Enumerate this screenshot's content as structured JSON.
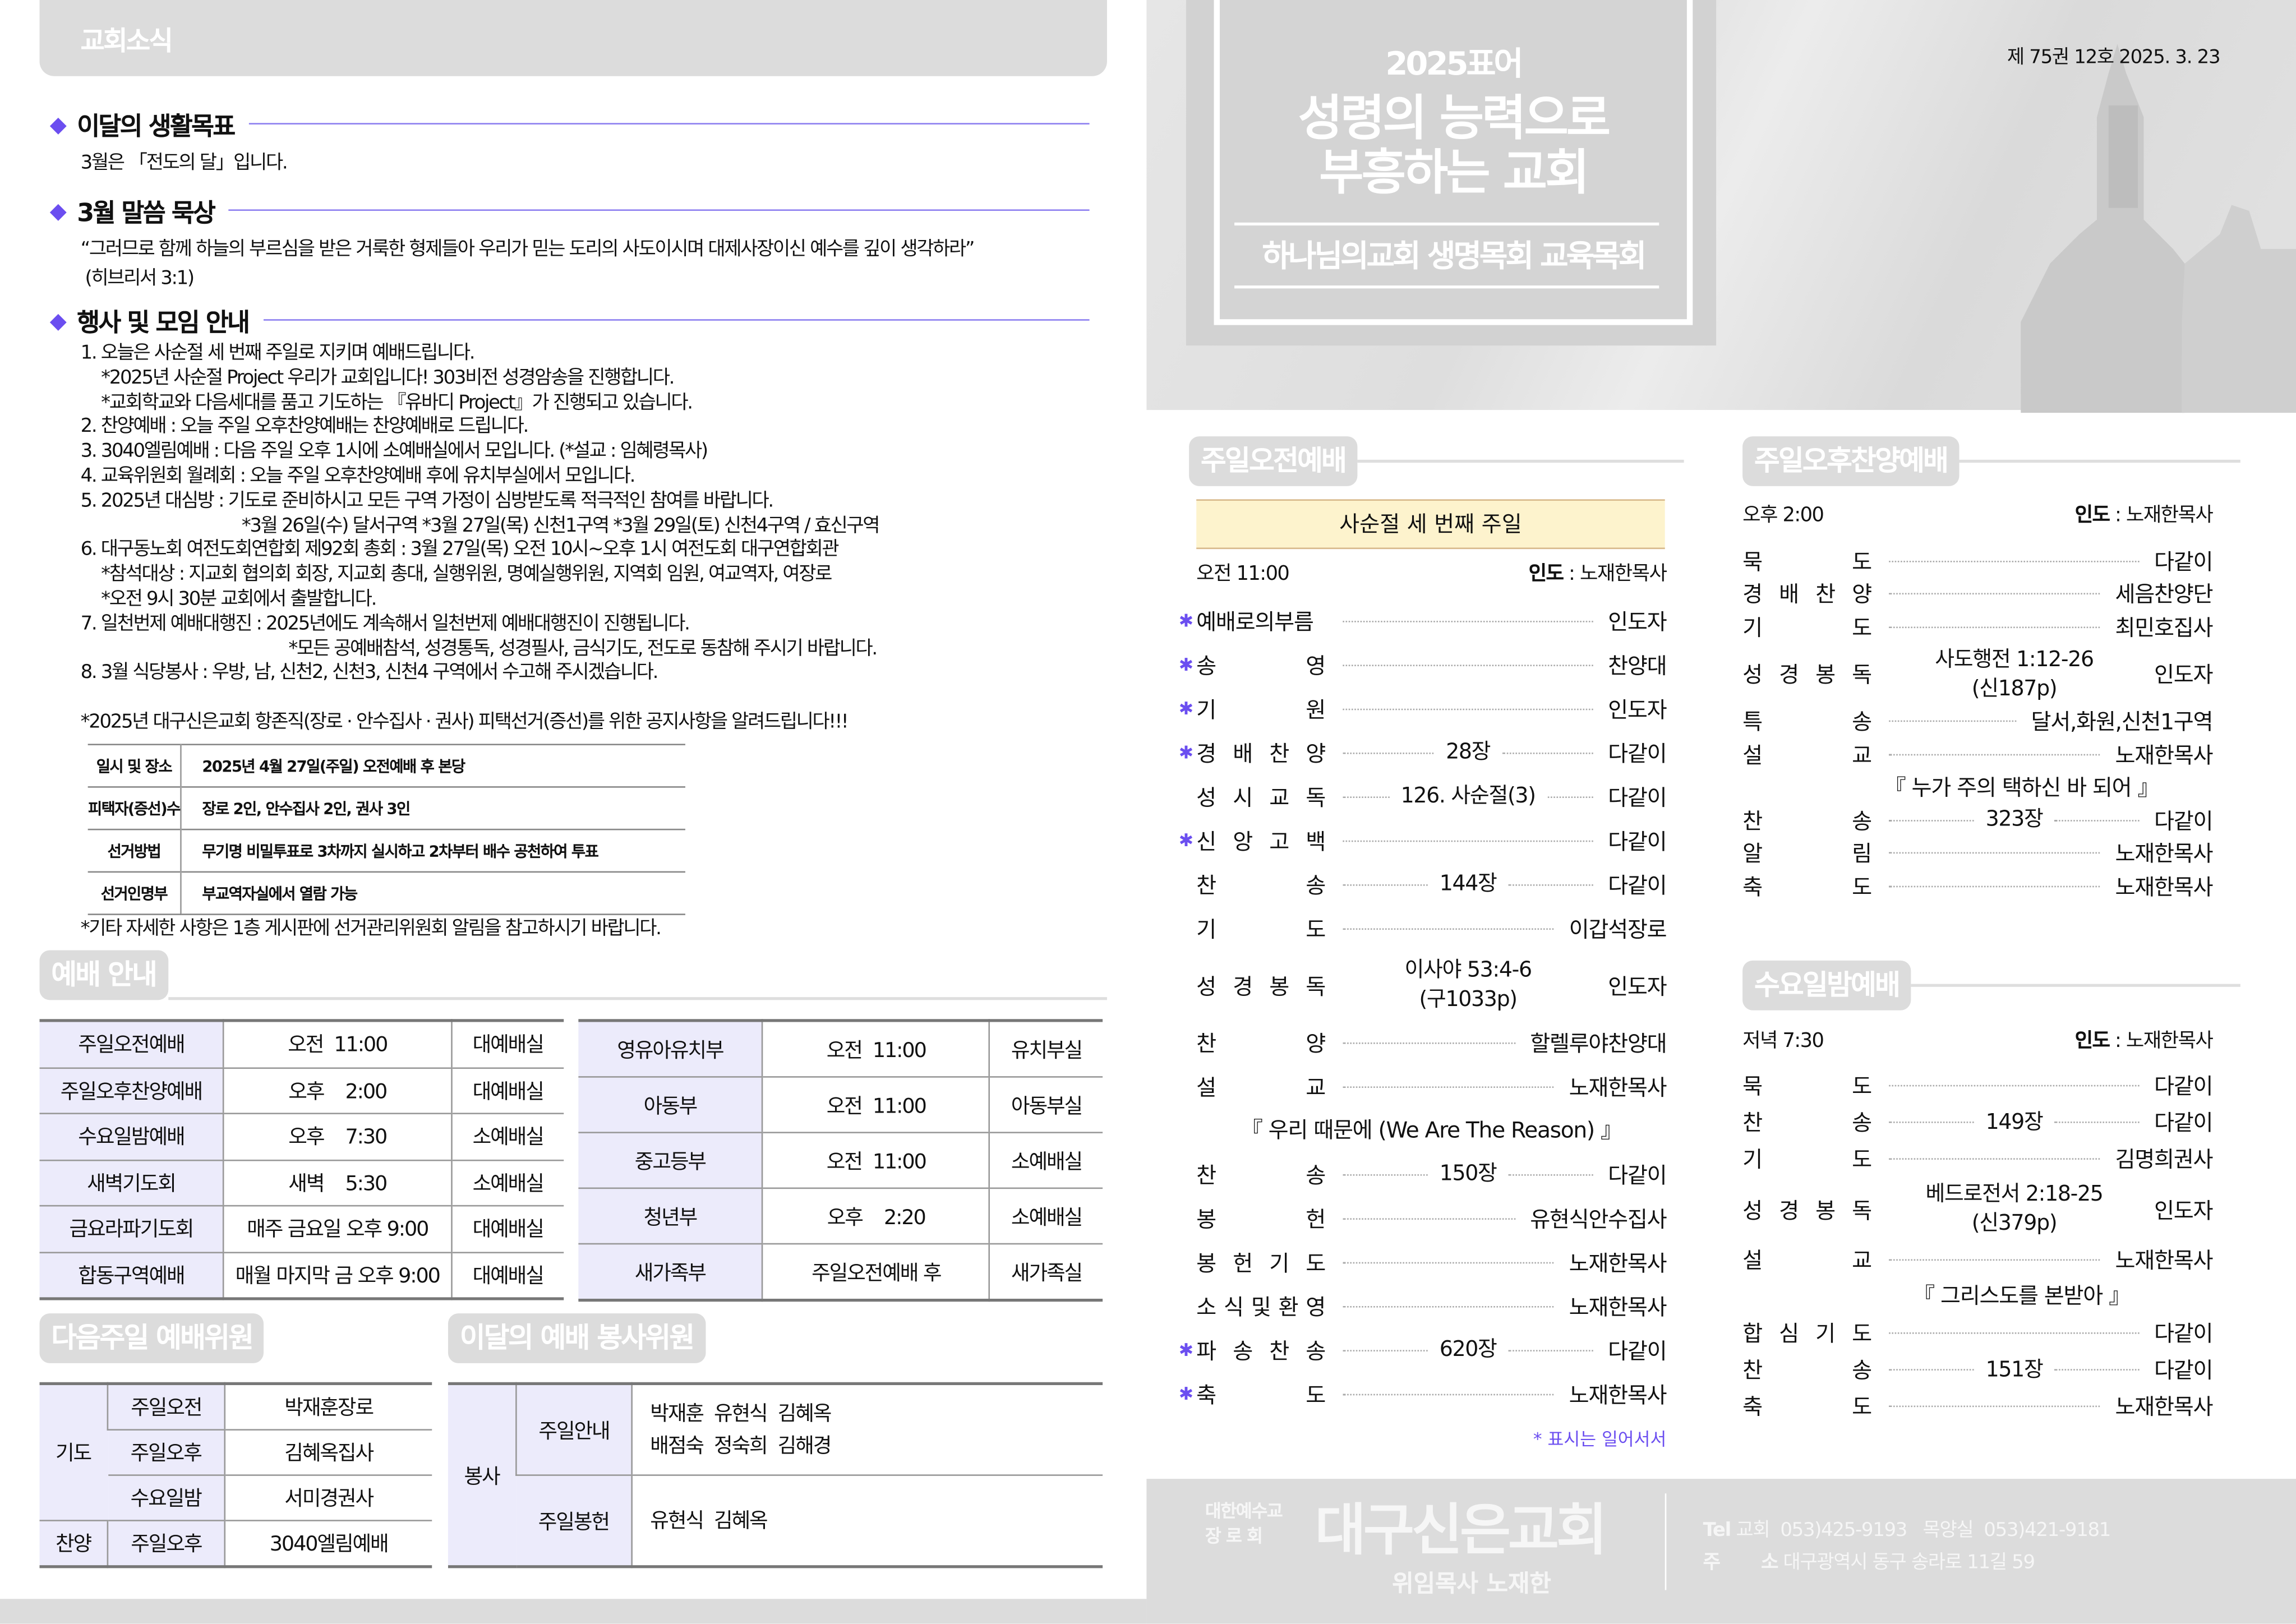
{
  "left": {
    "header": "교회소식",
    "goal": {
      "title": "이달의 생활목표",
      "text": "3월은 「전도의 달」입니다."
    },
    "meditation": {
      "title": "3월 말씀 묵상",
      "verse": "“그러므로 함께 하늘의 부르심을 받은 거룩한 형제들아 우리가 믿는 도리의 사도이시며 대제사장이신 예수를 깊이 생각하라”",
      "ref": "(히브리서 3:1)"
    },
    "events": {
      "title": "행사 및 모임 안내",
      "items": [
        {
          "text": "1. 오늘은 사순절 세 번째 주일로 지키며 예배드립니다.",
          "notes": [
            "*2025년 사순절 Project 우리가 교회입니다!  303비전 성경암송을 진행합니다.",
            "*교회학교와 다음세대를 품고 기도하는 『유바디 Project』가 진행되고 있습니다."
          ]
        },
        {
          "text": "2. 찬양예배 : 오늘 주일 오후찬양예배는 찬양예배로 드립니다.",
          "notes": []
        },
        {
          "text": "3. 3040엘림예배 : 다음 주일 오후 1시에 소예배실에서 모입니다. (*설교 : 임혜령목사)",
          "notes": []
        },
        {
          "text": "4. 교육위원회 월례회 : 오늘 주일 오후찬양예배 후에 유치부실에서 모입니다.",
          "notes": []
        },
        {
          "text": "5. 2025년 대심방 : 기도로 준비하시고 모든 구역 가정이 심방받도록 적극적인 참여를 바랍니다.",
          "notes": [
            "*3월 26일(수) 달서구역   *3월 27일(목) 신천1구역   *3월 29일(토) 신천4구역 / 효신구역"
          ]
        },
        {
          "text": "6. 대구동노회 여전도회연합회 제92회 총회 : 3월 27일(목) 오전 10시~오후 1시 여전도회 대구연합회관",
          "notes": [
            "*참석대상 : 지교회 협의회 회장, 지교회 총대, 실행위원, 명예실행위원, 지역회 임원, 여교역자, 여장로",
            "*오전 9시 30분 교회에서 출발합니다."
          ]
        },
        {
          "text": "7. 일천번제 예배대행진 : 2025년에도 계속해서 일천번제 예배대행진이 진행됩니다.",
          "notes": [
            "*모든 공예배참석, 성경통독, 성경필사, 금식기도, 전도로 동참해 주시기 바랍니다."
          ]
        },
        {
          "text": "8. 3월 식당봉사 : 우방, 남, 신천2, 신천3, 신천4 구역에서 수고해 주시겠습니다.",
          "notes": []
        }
      ]
    },
    "election": {
      "notice": "*2025년 대구신은교회 항존직(장로 · 안수집사 · 권사) 피택선거(증선)를 위한 공지사항을 알려드립니다!!!",
      "rows": [
        [
          "일시 및 장소",
          "2025년 4월 27일(주일) 오전예배 후 본당"
        ],
        [
          "피택자(증선)수",
          "장로 2인, 안수집사 2인, 권사 3인"
        ],
        [
          "선거방법",
          "무기명 비밀투표로 3차까지 실시하고 2차부터 배수 공천하여 투표"
        ],
        [
          "선거인명부",
          "부교역자실에서 열람 가능"
        ]
      ],
      "footnote": "*기타 자세한 사항은 1층 게시판에 선거관리위원회 알림을 참고하시기 바랍니다."
    },
    "worship_guide": {
      "title": "예배 안내",
      "left_rows": [
        [
          "주일오전예배",
          "오전  11:00",
          "대예배실"
        ],
        [
          "주일오후찬양예배",
          "오후    2:00",
          "대예배실"
        ],
        [
          "수요일밤예배",
          "오후    7:30",
          "소예배실"
        ],
        [
          "새벽기도회",
          "새벽    5:30",
          "소예배실"
        ],
        [
          "금요라파기도회",
          "매주 금요일 오후 9:00",
          "대예배실"
        ],
        [
          "합동구역예배",
          "매월 마지막 금 오후 9:00",
          "대예배실"
        ]
      ],
      "right_rows": [
        [
          "영유아유치부",
          "오전  11:00",
          "유치부실"
        ],
        [
          "아동부",
          "오전  11:00",
          "아동부실"
        ],
        [
          "중고등부",
          "오전  11:00",
          "소예배실"
        ],
        [
          "청년부",
          "오후    2:20",
          "소예배실"
        ],
        [
          "새가족부",
          "주일오전예배 후",
          "새가족실"
        ]
      ]
    },
    "next_week": {
      "title": "다음주일 예배위원",
      "prayer_label": "기도",
      "prayer_rows": [
        [
          "주일오전",
          "박재훈장로"
        ],
        [
          "주일오후",
          "김혜옥집사"
        ],
        [
          "수요일밤",
          "서미경권사"
        ]
      ],
      "praise_label": "찬양",
      "praise_row": [
        "주일오후",
        "3040엘림예배"
      ]
    },
    "service_team": {
      "title": "이달의 예배 봉사위원",
      "group_label": "봉사",
      "rows": [
        [
          "주일안내",
          "박재훈  유현식  김혜옥\n배점숙  정숙희  김해경"
        ],
        [
          "주일봉헌",
          "유현식  김혜옥"
        ]
      ]
    }
  },
  "right": {
    "cover": {
      "motto_year": "2025표어",
      "motto_line1": "성령의 능력으로",
      "motto_line2": "부흥하는 교회",
      "subtitle": "하나님의교회  생명목회  교육목회"
    },
    "issue": "제 75권  12호  2025. 3. 23",
    "morning": {
      "title": "주일오전예배",
      "banner": "사순절 세 번째 주일",
      "time": "오전 11:00",
      "leader_label": "인도",
      "leader": " : 노재한목사",
      "items": [
        {
          "star": true,
          "label": "예배로의부름",
          "middle": "",
          "right": "인도자"
        },
        {
          "star": true,
          "label": "송 영",
          "middle": "",
          "right": "찬양대"
        },
        {
          "star": true,
          "label": "기 원",
          "middle": "",
          "right": "인도자"
        },
        {
          "star": true,
          "label": "경 배 찬 양",
          "middle": "28장",
          "right": "다같이"
        },
        {
          "star": false,
          "label": "성 시 교 독",
          "middle": "126. 사순절(3)",
          "right": "다같이"
        },
        {
          "star": true,
          "label": "신 앙 고 백",
          "middle": "",
          "right": "다같이"
        },
        {
          "star": false,
          "label": "찬 송",
          "middle": "144장",
          "right": "다같이"
        },
        {
          "star": false,
          "label": "기 도",
          "middle": "",
          "right": "이갑석장로"
        },
        {
          "star": false,
          "label": "성 경 봉 독",
          "middle": "이사야 53:4-6\n(구1033p)",
          "right": "인도자"
        },
        {
          "star": false,
          "label": "찬 양",
          "middle": "",
          "right": "할렐루야찬양대"
        },
        {
          "star": false,
          "label": "설 교",
          "middle": "",
          "right": "노재한목사"
        },
        {
          "quote": "『 우리 때문에 (We Are The Reason) 』"
        },
        {
          "star": false,
          "label": "찬 송",
          "middle": "150장",
          "right": "다같이"
        },
        {
          "star": false,
          "label": "봉 헌",
          "middle": "",
          "right": "유현식안수집사"
        },
        {
          "star": false,
          "label": "봉 헌 기 도",
          "middle": "",
          "right": "노재한목사"
        },
        {
          "star": false,
          "label": "소 식 및 환 영",
          "middle": "",
          "right": "노재한목사"
        },
        {
          "star": true,
          "label": "파 송 찬 송",
          "middle": "620장",
          "right": "다같이"
        },
        {
          "star": true,
          "label": "축 도",
          "middle": "",
          "right": "노재한목사"
        }
      ],
      "note": "* 표시는 일어서서"
    },
    "afternoon": {
      "title": "주일오후찬양예배",
      "time": "오후 2:00",
      "leader_label": "인도",
      "leader": " : 노재한목사",
      "items": [
        {
          "label": "묵 도",
          "middle": "",
          "right": "다같이"
        },
        {
          "label": "경 배 찬 양",
          "middle": "",
          "right": "세음찬양단"
        },
        {
          "label": "기 도",
          "middle": "",
          "right": "최민호집사"
        },
        {
          "label": "성 경 봉 독",
          "middle": "사도행전 1:12-26\n(신187p)",
          "right": "인도자"
        },
        {
          "label": "특 송",
          "middle": "",
          "right": "달서,화원,신천1구역"
        },
        {
          "label": "설 교",
          "middle": "",
          "right": "노재한목사"
        },
        {
          "quote": "『 누가 주의 택하신 바 되어 』"
        },
        {
          "label": "찬 송",
          "middle": "323장",
          "right": "다같이"
        },
        {
          "label": "알 림",
          "middle": "",
          "right": "노재한목사"
        },
        {
          "label": "축 도",
          "middle": "",
          "right": "노재한목사"
        }
      ]
    },
    "wednesday": {
      "title": "수요일밤예배",
      "time": "저녁 7:30",
      "leader_label": "인도",
      "leader": " : 노재한목사",
      "items": [
        {
          "label": "묵 도",
          "middle": "",
          "right": "다같이"
        },
        {
          "label": "찬 송",
          "middle": "149장",
          "right": "다같이"
        },
        {
          "label": "기 도",
          "middle": "",
          "right": "김명희권사"
        },
        {
          "label": "성 경 봉 독",
          "middle": "베드로전서 2:18-25\n(신379p)",
          "right": "인도자"
        },
        {
          "label": "설 교",
          "middle": "",
          "right": "노재한목사"
        },
        {
          "quote": "『 그리스도를 본받아 』"
        },
        {
          "label": "합 심 기 도",
          "middle": "",
          "right": "다같이"
        },
        {
          "label": "찬 송",
          "middle": "151장",
          "right": "다같이"
        },
        {
          "label": "축 도",
          "middle": "",
          "right": "노재한목사"
        }
      ]
    },
    "footer": {
      "denomination_line1": "대한예수교",
      "denomination_line2": "장  로  회",
      "church_name": "대구신은교회",
      "pastor": "위임목사 노재한",
      "tel_label": "Tel",
      "tel": "교회  053)425-9193   목양실  053)421-9181",
      "address_label": "주       소",
      "address": "대구광역시 동구 송라로 11길 59"
    }
  },
  "colors": {
    "accent": "#6b4ef0",
    "rule": "#8d7ff0",
    "table_header": "#ecebfb",
    "banner": "#fdf3cd",
    "panel_gray": "#dcdcdc"
  }
}
